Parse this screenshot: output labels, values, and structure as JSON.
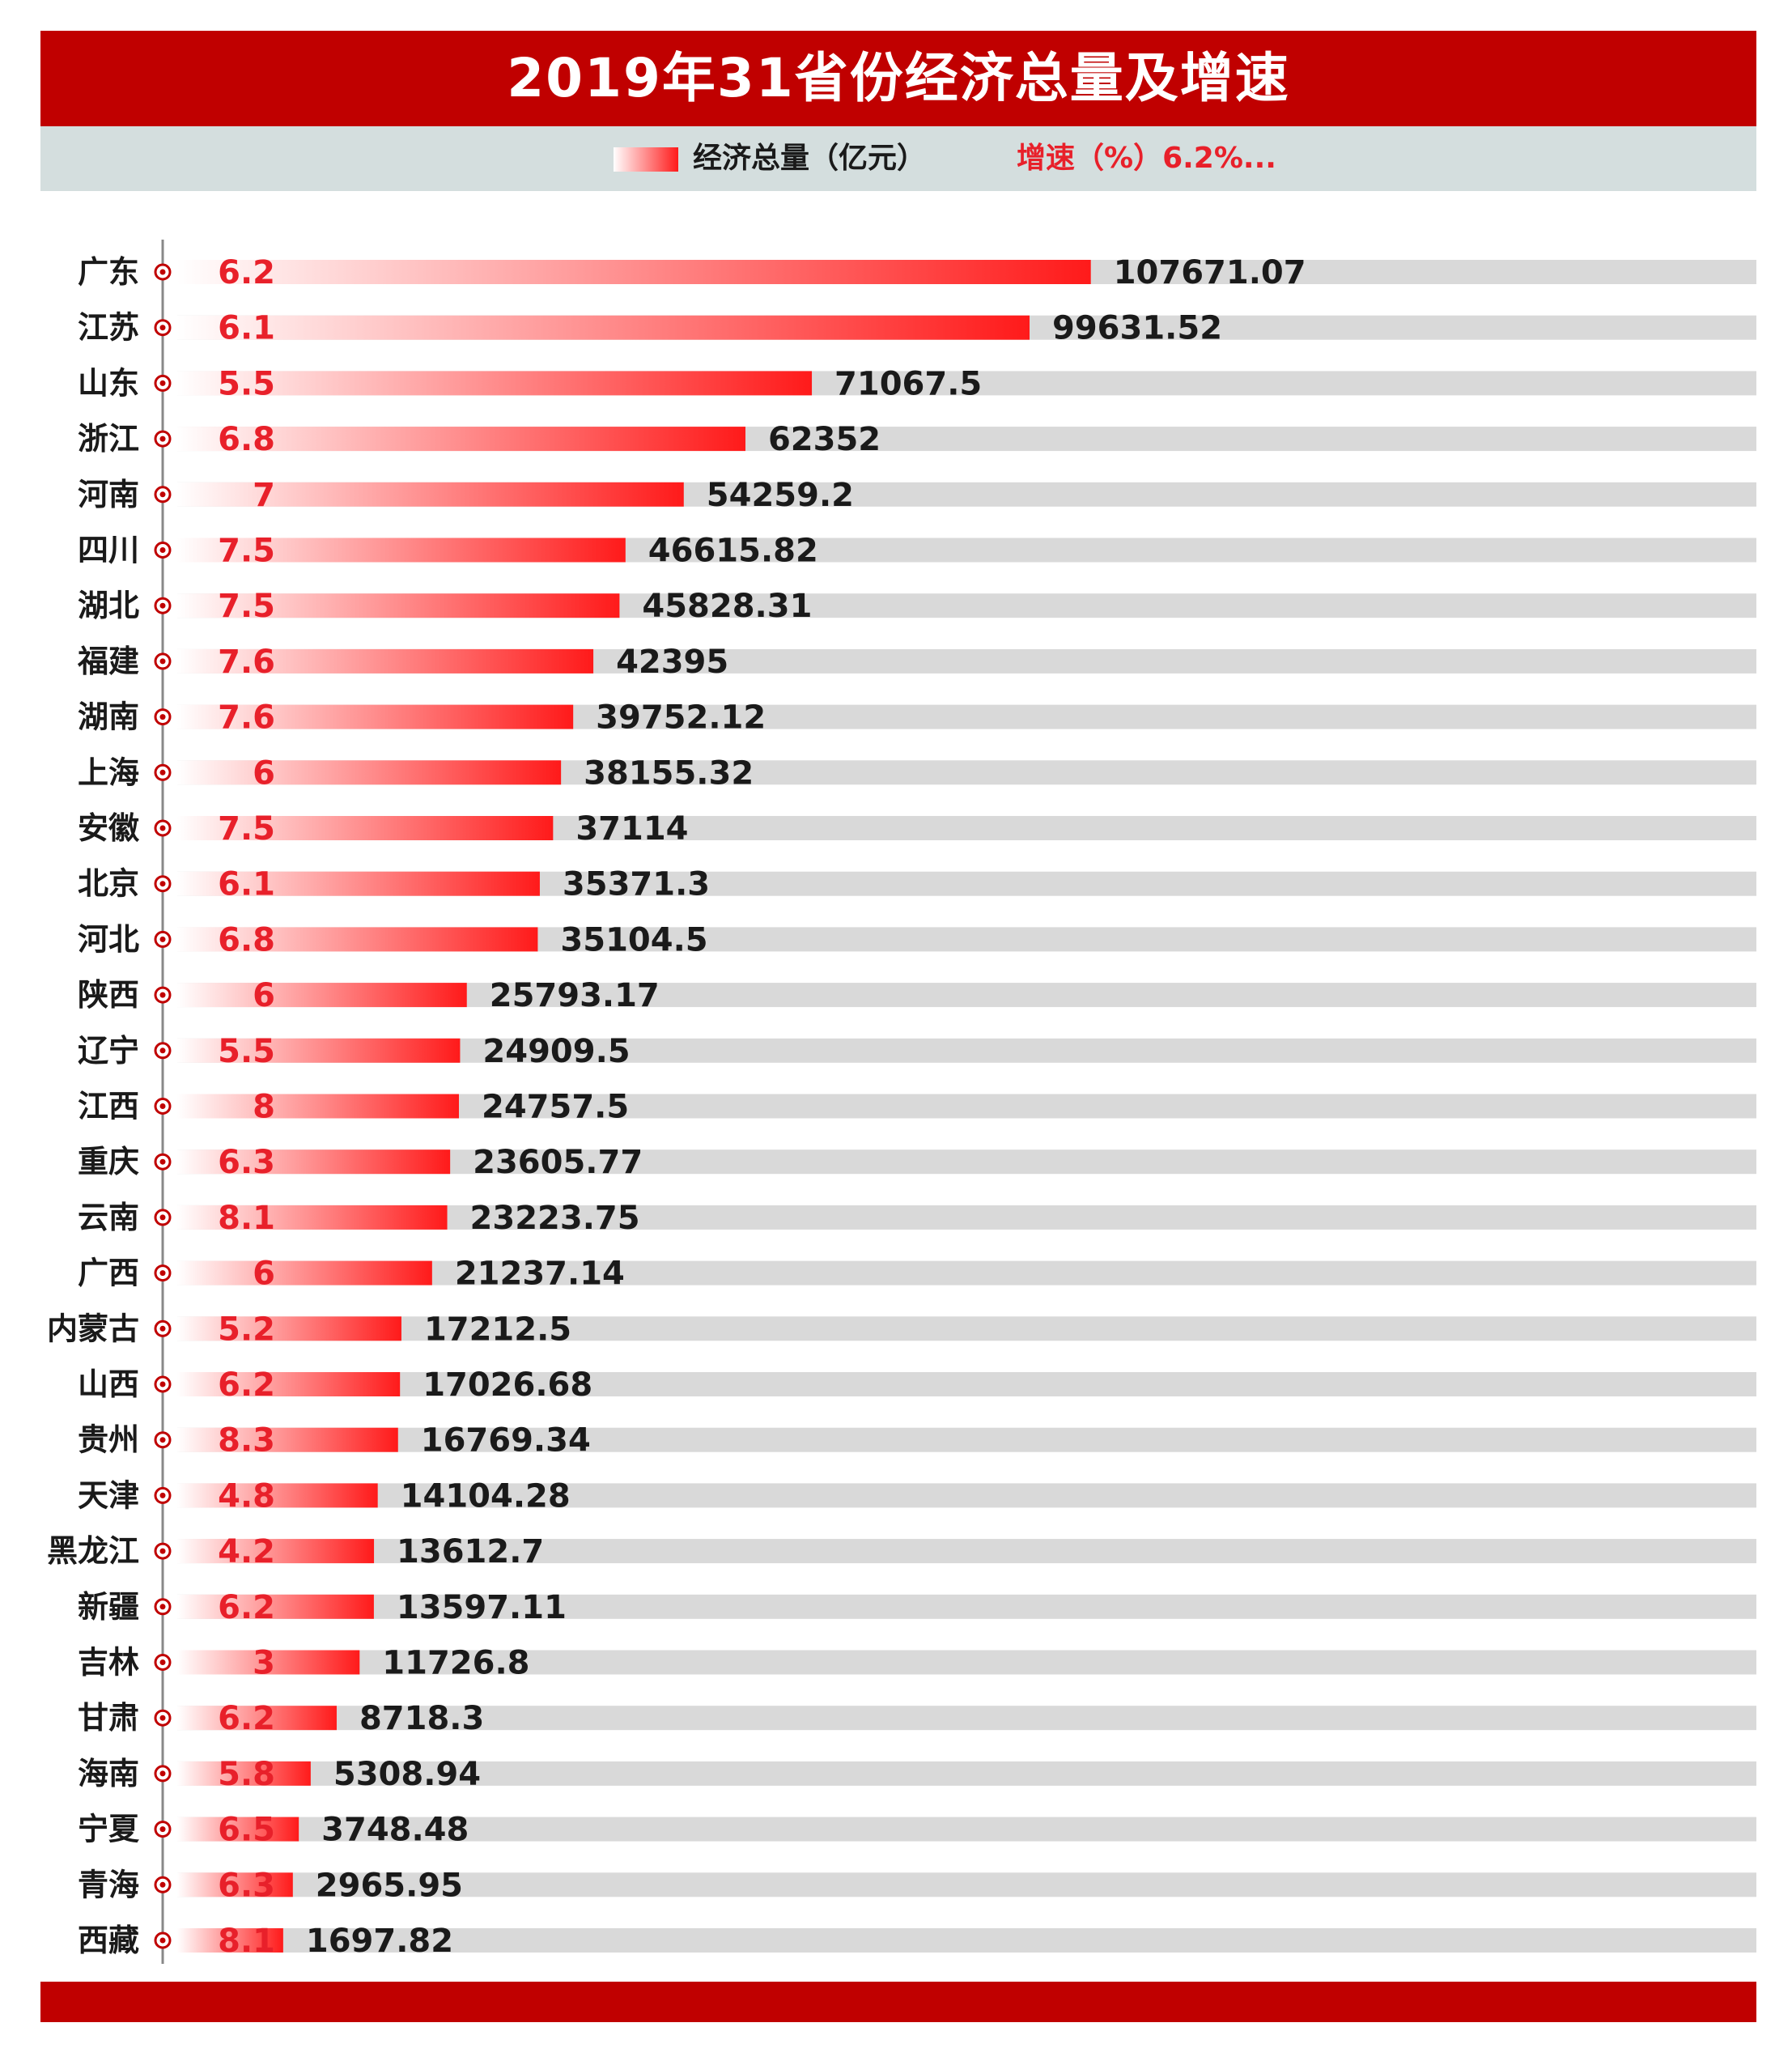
{
  "title": "2019年31省份经济总量及增速",
  "legend": {
    "value_label": "经济总量（亿元）",
    "growth_label": "增速（%）6.2%..."
  },
  "colors": {
    "header": "#c00000",
    "legend_bg": "#d4dede",
    "bar_start": "#ffffff",
    "bar_end": "#ff1a1a",
    "track": "#d9d9d9",
    "growth_text": "#e8202a",
    "text": "#1a1a1a"
  },
  "chart_data": {
    "type": "bar",
    "orientation": "horizontal",
    "title": "2019年31省份经济总量及增速",
    "series": [
      {
        "name": "经济总量（亿元）",
        "values": [
          107671.07,
          99631.52,
          71067.5,
          62352,
          54259.2,
          46615.82,
          45828.31,
          42395,
          39752.12,
          38155.32,
          37114,
          35371.3,
          35104.5,
          25793.17,
          24909.5,
          24757.5,
          23605.77,
          23223.75,
          21237.14,
          17212.5,
          17026.68,
          16769.34,
          14104.28,
          13612.7,
          13597.11,
          11726.8,
          8718.3,
          5308.94,
          3748.48,
          2965.95,
          1697.82
        ]
      },
      {
        "name": "增速（%）",
        "values": [
          "6.2",
          "6.1",
          "5.5",
          "6.8",
          "7",
          "7.5",
          "7.5",
          "7.6",
          "7.6",
          "6",
          "7.5",
          "6.1",
          "6.8",
          "6",
          "5.5",
          "8",
          "6.3",
          "8.1",
          "6",
          "5.2",
          "6.2",
          "8.3",
          "4.8",
          "4.2",
          "6.2",
          "3",
          "6.2",
          "5.8",
          "6.5",
          "6.3",
          "8.1"
        ]
      }
    ],
    "value_labels": [
      "107671.07",
      "99631.52",
      "71067.5",
      "62352",
      "54259.2",
      "46615.82",
      "45828.31",
      "42395",
      "39752.12",
      "38155.32",
      "37114",
      "35371.3",
      "35104.5",
      "25793.17",
      "24909.5",
      "24757.5",
      "23605.77",
      "23223.75",
      "21237.14",
      "17212.5",
      "17026.68",
      "16769.34",
      "14104.28",
      "13612.7",
      "13597.11",
      "11726.8",
      "8718.3",
      "5308.94",
      "3748.48",
      "2965.95",
      "1697.82"
    ],
    "categories": [
      "广东",
      "江苏",
      "山东",
      "浙江",
      "河南",
      "四川",
      "湖北",
      "福建",
      "湖南",
      "上海",
      "安徽",
      "北京",
      "河北",
      "陕西",
      "辽宁",
      "江西",
      "重庆",
      "云南",
      "广西",
      "内蒙古",
      "山西",
      "贵州",
      "天津",
      "黑龙江",
      "新疆",
      "吉林",
      "甘肃",
      "海南",
      "宁夏",
      "青海",
      "西藏"
    ],
    "xlim": [
      -12200,
      195000
    ],
    "legend_position": "top-center"
  }
}
